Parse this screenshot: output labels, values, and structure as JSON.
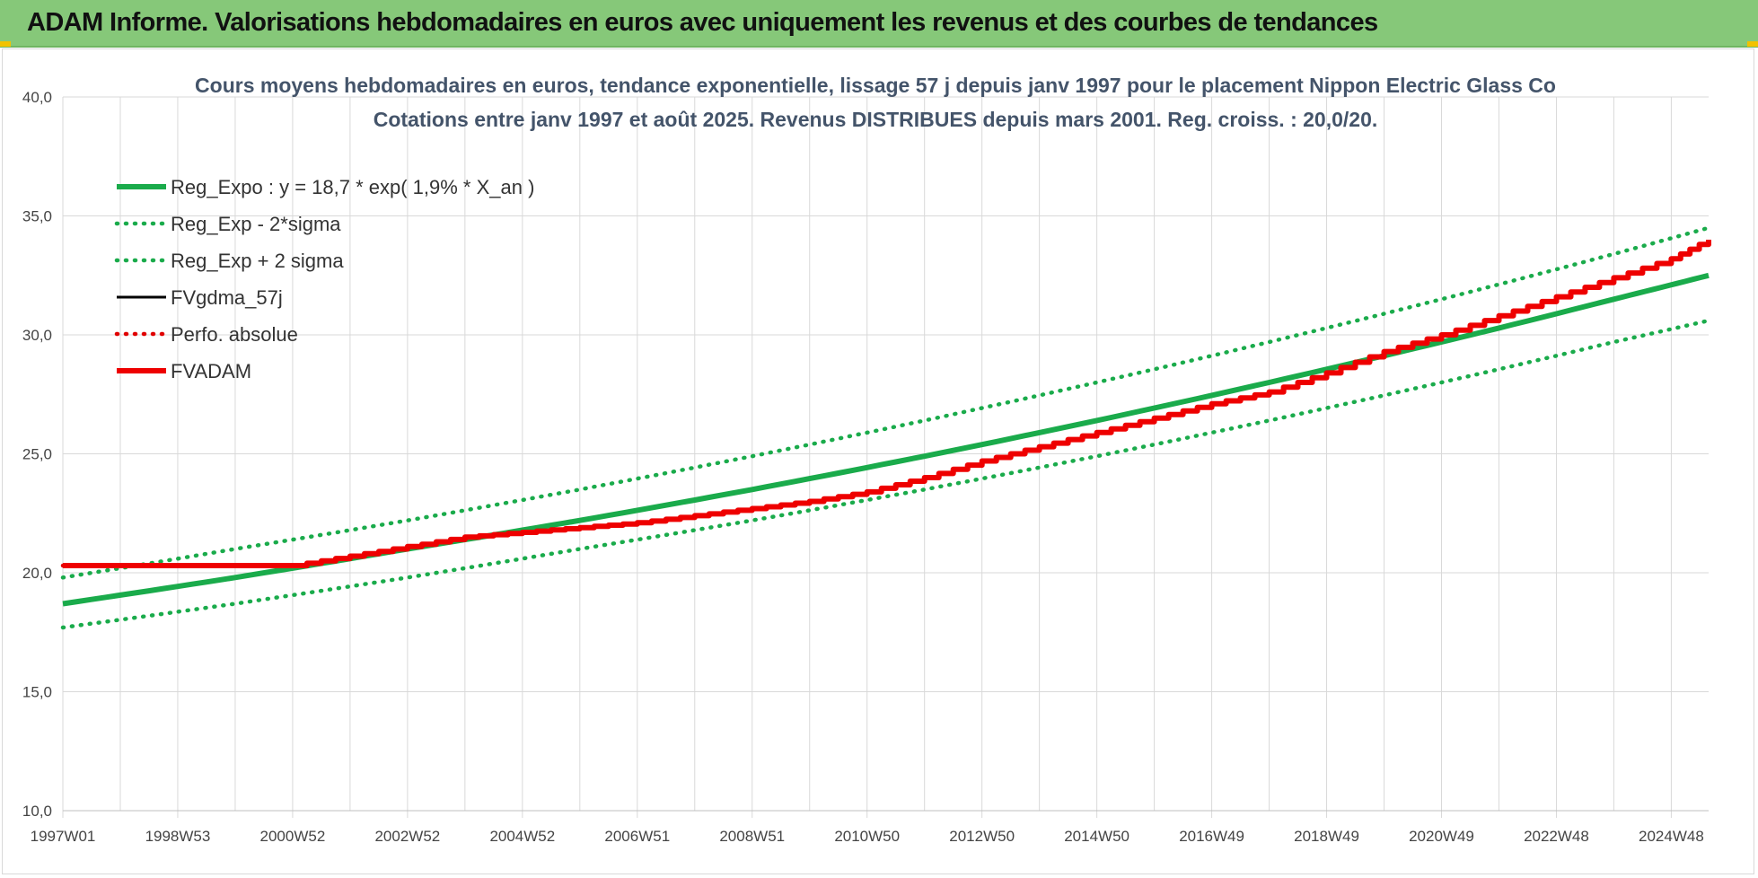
{
  "header": {
    "title": "ADAM Informe. Valorisations hebdomadaires en euros avec uniquement les revenus et des courbes de tendances"
  },
  "colors": {
    "header_bg": "#86c879",
    "reg_expo": "#1aab4b",
    "sigma": "#1aab4b",
    "fvgdma": "#000000",
    "perfo": "#e00000",
    "fvadam": "#ee0000",
    "grid": "#d9d9d9"
  },
  "chart_data": {
    "type": "line",
    "title": [
      "Cours moyens hebdomadaires en euros, tendance exponentielle, lissage 57 j depuis janv 1997 pour le placement Nippon Electric Glass Co",
      "Cotations entre janv 1997 et août 2025. Revenus DISTRIBUES depuis mars 2001. Reg. croiss. : 20,0/20."
    ],
    "xlabel": "",
    "ylabel": "",
    "x_range": [
      1997.0,
      2025.65
    ],
    "ylim": [
      10,
      40
    ],
    "yticks": [
      {
        "value": 10,
        "label": "10,0"
      },
      {
        "value": 15,
        "label": "15,0"
      },
      {
        "value": 20,
        "label": "20,0"
      },
      {
        "value": 25,
        "label": "25,0"
      },
      {
        "value": 30,
        "label": "30,0"
      },
      {
        "value": 35,
        "label": "35,0"
      },
      {
        "value": 40,
        "label": "40,0"
      }
    ],
    "xticks": [
      {
        "value": 1997.0,
        "label": "1997W01"
      },
      {
        "value": 1999.0,
        "label": "1998W53"
      },
      {
        "value": 2001.0,
        "label": "2000W52"
      },
      {
        "value": 2003.0,
        "label": "2002W52"
      },
      {
        "value": 2005.0,
        "label": "2004W52"
      },
      {
        "value": 2007.0,
        "label": "2006W51"
      },
      {
        "value": 2009.0,
        "label": "2008W51"
      },
      {
        "value": 2011.0,
        "label": "2010W50"
      },
      {
        "value": 2013.0,
        "label": "2012W50"
      },
      {
        "value": 2015.0,
        "label": "2014W50"
      },
      {
        "value": 2017.0,
        "label": "2016W49"
      },
      {
        "value": 2019.0,
        "label": "2018W49"
      },
      {
        "value": 2021.0,
        "label": "2020W49"
      },
      {
        "value": 2023.0,
        "label": "2022W48"
      },
      {
        "value": 2025.0,
        "label": "2024W48"
      }
    ],
    "minor_gridlines_per_major": 2,
    "grid": true,
    "legend_position": "top-left",
    "series": [
      {
        "name": "Reg_Expo : y = 18,7 * exp( 1,9% *  X_an )",
        "style": "solid-thick",
        "color": "#1aab4b",
        "x": [
          1997.0,
          2000.0,
          2003.0,
          2006.0,
          2009.0,
          2012.0,
          2015.0,
          2018.0,
          2021.0,
          2024.0,
          2025.65
        ],
        "y": [
          18.7,
          19.8,
          21.0,
          22.2,
          23.5,
          24.9,
          26.4,
          28.0,
          29.7,
          31.5,
          32.5
        ]
      },
      {
        "name": "Reg_Exp - 2*sigma",
        "style": "dotted",
        "color": "#1aab4b",
        "x": [
          1997.0,
          2000.0,
          2003.0,
          2006.0,
          2009.0,
          2012.0,
          2015.0,
          2018.0,
          2021.0,
          2024.0,
          2025.65
        ],
        "y": [
          17.7,
          18.7,
          19.8,
          21.0,
          22.2,
          23.5,
          24.9,
          26.4,
          28.0,
          29.7,
          30.6
        ]
      },
      {
        "name": "Reg_Exp + 2 sigma",
        "style": "dotted",
        "color": "#1aab4b",
        "x": [
          1997.0,
          2000.0,
          2003.0,
          2006.0,
          2009.0,
          2012.0,
          2015.0,
          2018.0,
          2021.0,
          2024.0,
          2025.65
        ],
        "y": [
          19.8,
          21.0,
          22.2,
          23.5,
          24.9,
          26.4,
          28.0,
          29.7,
          31.5,
          33.4,
          34.5
        ]
      },
      {
        "name": "FVgdma_57j",
        "style": "solid",
        "color": "#000000",
        "x": [
          1997.0,
          2001.0,
          2002.0,
          2003.0,
          2004.0,
          2005.0,
          2006.0,
          2007.0,
          2008.0,
          2009.0,
          2010.0,
          2011.0,
          2012.0,
          2013.0,
          2014.0,
          2015.0,
          2016.0,
          2017.0,
          2018.0,
          2019.0,
          2020.0,
          2021.0,
          2022.0,
          2023.0,
          2024.0,
          2025.0,
          2025.65
        ],
        "y": [
          20.3,
          20.3,
          20.7,
          21.1,
          21.5,
          21.7,
          21.9,
          22.1,
          22.4,
          22.7,
          23.0,
          23.4,
          24.0,
          24.7,
          25.3,
          25.9,
          26.5,
          27.1,
          27.6,
          28.4,
          29.3,
          30.0,
          30.8,
          31.6,
          32.4,
          33.2,
          34.0
        ],
        "stepped": true
      },
      {
        "name": "Perfo. absolue",
        "style": "dotted",
        "color": "#e00000",
        "x": [
          1997.0,
          2001.0,
          2002.0,
          2003.0,
          2004.0,
          2005.0,
          2006.0,
          2007.0,
          2008.0,
          2009.0,
          2010.0,
          2011.0,
          2012.0,
          2013.0,
          2014.0,
          2015.0,
          2016.0,
          2017.0,
          2018.0,
          2019.0,
          2020.0,
          2021.0,
          2022.0,
          2023.0,
          2024.0,
          2025.0,
          2025.65
        ],
        "y": [
          20.3,
          20.3,
          20.7,
          21.1,
          21.5,
          21.7,
          21.9,
          22.1,
          22.4,
          22.7,
          23.0,
          23.4,
          24.0,
          24.7,
          25.3,
          25.9,
          26.5,
          27.1,
          27.6,
          28.4,
          29.3,
          30.0,
          30.8,
          31.6,
          32.4,
          33.2,
          34.0
        ],
        "stepped": true
      },
      {
        "name": "FVADAM",
        "style": "solid-thick",
        "color": "#ee0000",
        "x": [
          1997.0,
          2001.0,
          2002.0,
          2003.0,
          2004.0,
          2005.0,
          2006.0,
          2007.0,
          2008.0,
          2009.0,
          2010.0,
          2011.0,
          2012.0,
          2013.0,
          2014.0,
          2015.0,
          2016.0,
          2017.0,
          2018.0,
          2019.0,
          2020.0,
          2021.0,
          2022.0,
          2023.0,
          2024.0,
          2025.0,
          2025.65
        ],
        "y": [
          20.3,
          20.3,
          20.7,
          21.1,
          21.5,
          21.7,
          21.9,
          22.1,
          22.4,
          22.7,
          23.0,
          23.4,
          24.0,
          24.7,
          25.3,
          25.9,
          26.5,
          27.1,
          27.6,
          28.4,
          29.3,
          30.0,
          30.8,
          31.6,
          32.4,
          33.2,
          34.0
        ],
        "stepped": true
      }
    ]
  }
}
